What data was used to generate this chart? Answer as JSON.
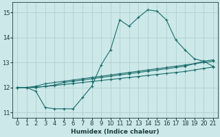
{
  "xlabel": "Humidex (Indice chaleur)",
  "xlim": [
    -0.5,
    21.5
  ],
  "ylim": [
    10.8,
    15.4
  ],
  "yticks": [
    11,
    12,
    13,
    14,
    15
  ],
  "xticks": [
    0,
    1,
    2,
    3,
    4,
    5,
    6,
    7,
    8,
    9,
    10,
    11,
    12,
    13,
    14,
    15,
    16,
    17,
    18,
    19,
    20,
    21
  ],
  "bg_color": "#cce8e8",
  "grid_color": "#aacccc",
  "line_color": "#1a6b6b",
  "series": [
    [
      12.0,
      12.0,
      11.85,
      11.2,
      11.15,
      11.15,
      11.15,
      11.6,
      12.05,
      12.9,
      13.5,
      14.7,
      14.45,
      14.8,
      15.1,
      15.05,
      14.7,
      13.9,
      13.5,
      13.15,
      13.05,
      12.85
    ],
    [
      12.0,
      12.0,
      12.0,
      12.05,
      12.1,
      12.2,
      12.25,
      12.3,
      12.35,
      12.4,
      12.45,
      12.5,
      12.55,
      12.6,
      12.65,
      12.7,
      12.75,
      12.8,
      12.85,
      12.95,
      13.05,
      13.1
    ],
    [
      12.0,
      12.0,
      12.05,
      12.15,
      12.2,
      12.25,
      12.3,
      12.35,
      12.4,
      12.45,
      12.5,
      12.55,
      12.6,
      12.65,
      12.7,
      12.75,
      12.8,
      12.85,
      12.9,
      12.95,
      13.0,
      13.05
    ],
    [
      12.0,
      12.0,
      12.02,
      12.04,
      12.08,
      12.12,
      12.16,
      12.2,
      12.24,
      12.28,
      12.32,
      12.36,
      12.4,
      12.44,
      12.48,
      12.52,
      12.56,
      12.6,
      12.64,
      12.7,
      12.76,
      12.82
    ]
  ]
}
